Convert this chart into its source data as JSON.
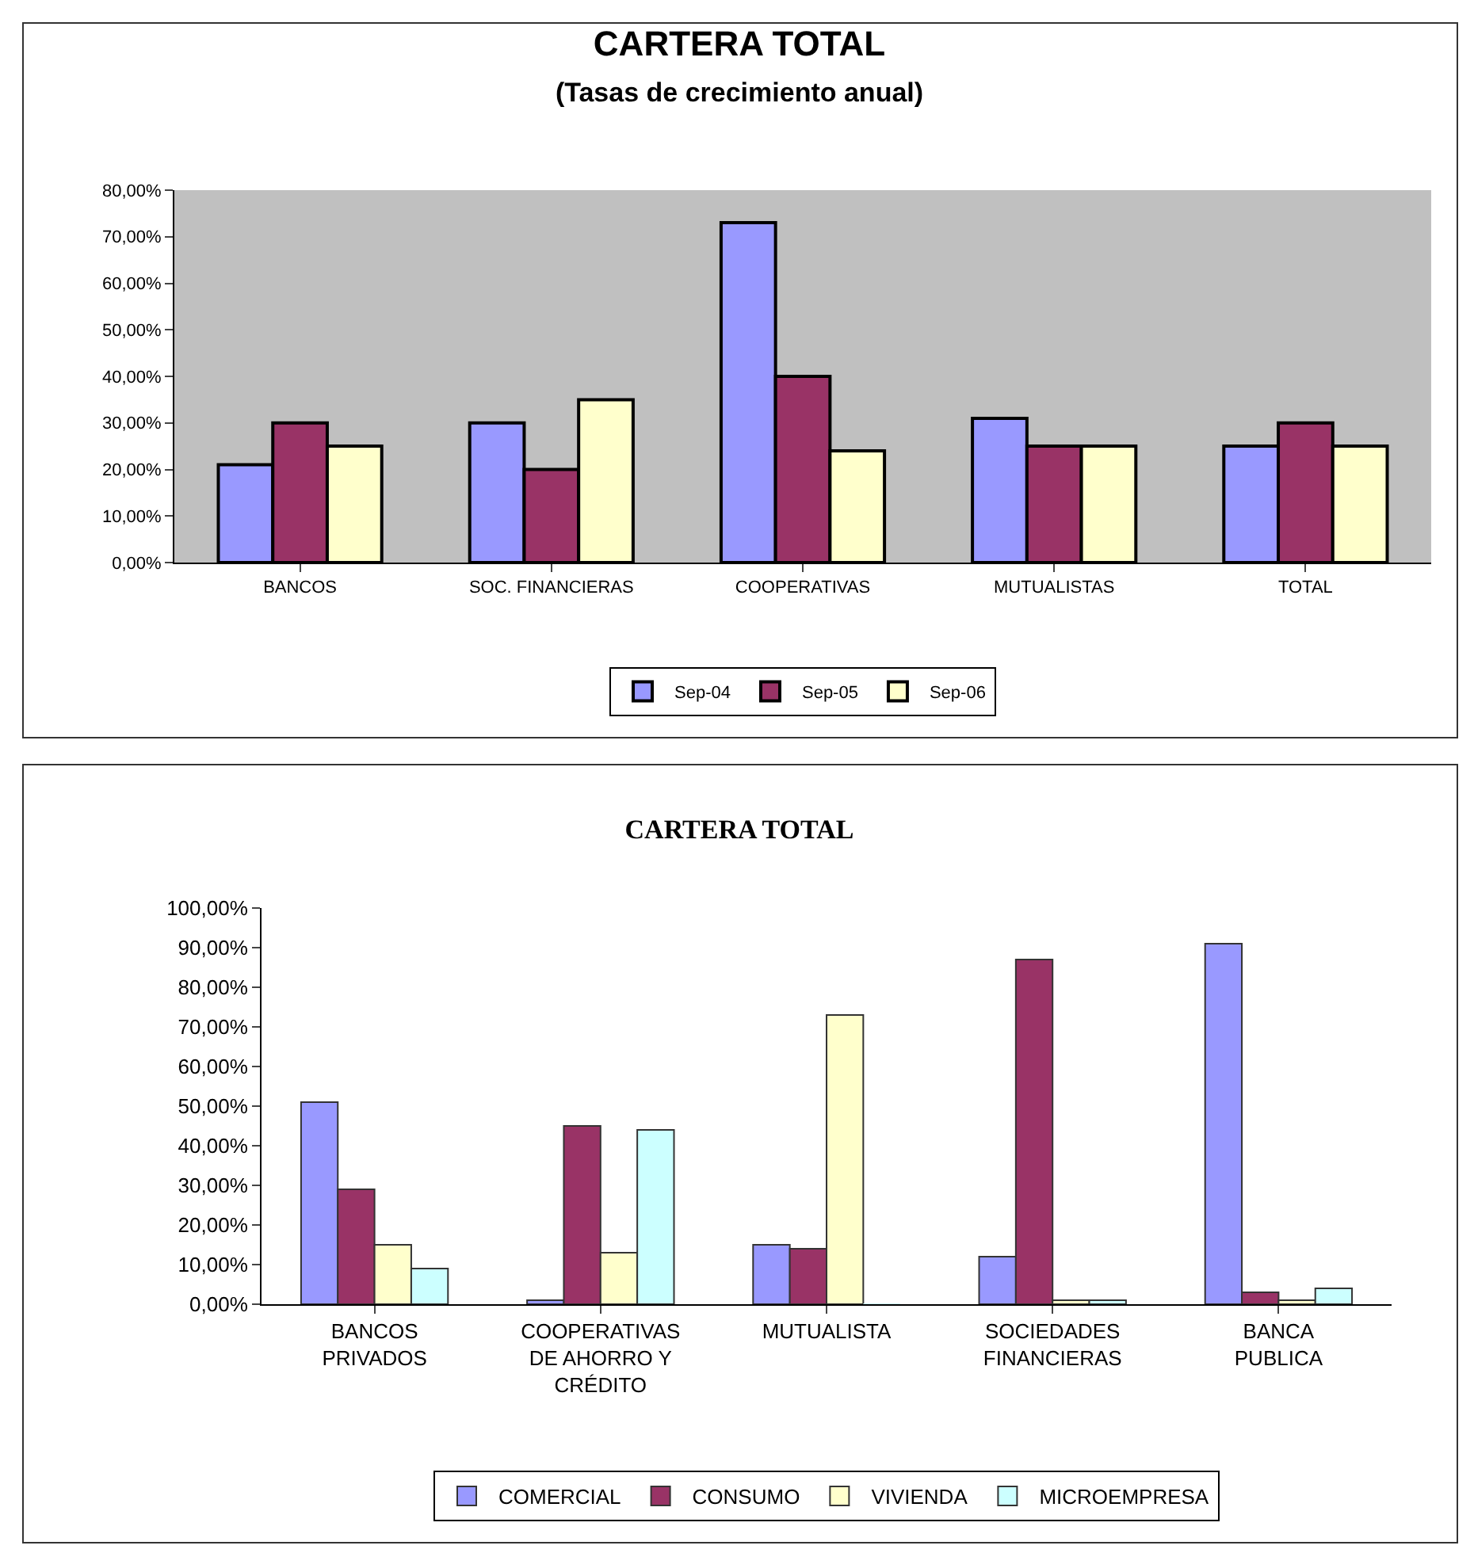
{
  "chart_data": [
    {
      "type": "bar",
      "title": "CARTERA TOTAL",
      "subtitle": "(Tasas de crecimiento anual)",
      "categories": [
        "BANCOS",
        "SOC. FINANCIERAS",
        "COOPERATIVAS",
        "MUTUALISTAS",
        "TOTAL"
      ],
      "series": [
        {
          "name": "Sep-04",
          "color": "#9999ff",
          "values": [
            21,
            30,
            73,
            31,
            25
          ]
        },
        {
          "name": "Sep-05",
          "color": "#993366",
          "values": [
            30,
            20,
            40,
            25,
            30
          ]
        },
        {
          "name": "Sep-06",
          "color": "#ffffcc",
          "values": [
            25,
            35,
            24,
            25,
            25
          ]
        }
      ],
      "ylim": [
        0,
        80
      ],
      "yticks": [
        {
          "value": 0,
          "label": "0,00%"
        },
        {
          "value": 10,
          "label": "10,00%"
        },
        {
          "value": 20,
          "label": "20,00%"
        },
        {
          "value": 30,
          "label": "30,00%"
        },
        {
          "value": 40,
          "label": "40,00%"
        },
        {
          "value": 50,
          "label": "50,00%"
        },
        {
          "value": 60,
          "label": "60,00%"
        },
        {
          "value": 70,
          "label": "70,00%"
        },
        {
          "value": 80,
          "label": "80,00%"
        }
      ],
      "grid": false,
      "legend": "bottom"
    },
    {
      "type": "bar",
      "title": "CARTERA TOTAL",
      "categories": [
        "BANCOS PRIVADOS",
        "COOPERATIVAS DE AHORRO Y CRÉDITO",
        "MUTUALISTA",
        "SOCIEDADES FINANCIERAS",
        "BANCA PUBLICA"
      ],
      "series": [
        {
          "name": "COMERCIAL",
          "color": "#9999ff",
          "values": [
            51,
            1,
            15,
            12,
            91
          ]
        },
        {
          "name": "CONSUMO",
          "color": "#993366",
          "values": [
            29,
            45,
            14,
            87,
            3
          ]
        },
        {
          "name": "VIVIENDA",
          "color": "#ffffcc",
          "values": [
            15,
            13,
            73,
            1,
            1
          ]
        },
        {
          "name": "MICROEMPRESA",
          "color": "#ccffff",
          "values": [
            9,
            44,
            0,
            1,
            4
          ]
        }
      ],
      "ylim": [
        0,
        100
      ],
      "yticks": [
        {
          "value": 0,
          "label": "0,00%"
        },
        {
          "value": 10,
          "label": "10,00%"
        },
        {
          "value": 20,
          "label": "20,00%"
        },
        {
          "value": 30,
          "label": "30,00%"
        },
        {
          "value": 40,
          "label": "40,00%"
        },
        {
          "value": 50,
          "label": "50,00%"
        },
        {
          "value": 60,
          "label": "60,00%"
        },
        {
          "value": 70,
          "label": "70,00%"
        },
        {
          "value": 80,
          "label": "80,00%"
        },
        {
          "value": 90,
          "label": "90,00%"
        },
        {
          "value": 100,
          "label": "100,00%"
        }
      ],
      "grid": false,
      "legend": "bottom"
    }
  ]
}
